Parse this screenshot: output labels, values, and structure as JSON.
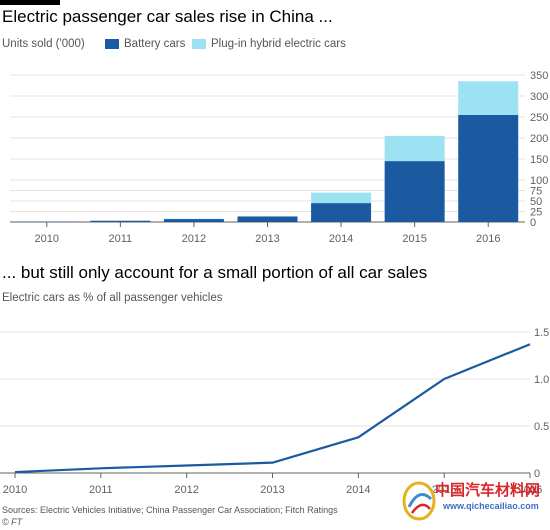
{
  "charts": {
    "top": {
      "title": "Electric passenger car sales rise in China ...",
      "subtitle": "Units sold ('000)",
      "legend": [
        {
          "label": "Battery cars",
          "color": "#1b5aa0"
        },
        {
          "label": "Plug-in hybrid electric cars",
          "color": "#9de2f2"
        }
      ]
    },
    "bottom": {
      "title": "... but still only account for a small portion of all car sales",
      "subtitle": "Electric cars as % of all passenger vehicles"
    }
  },
  "source": "Sources: Electric Vehicles Initiative; China Passenger Car Association; Fitch Ratings",
  "credit": "© FT",
  "watermark": {
    "text": "中国汽车材料网",
    "url": "www.qichecailiao.com"
  },
  "chart_data": [
    {
      "type": "bar",
      "stacked": true,
      "title": "Electric passenger car sales rise in China ...",
      "ylabel": "Units sold ('000)",
      "categories": [
        "2010",
        "2011",
        "2012",
        "2013",
        "2014",
        "2015",
        "2016"
      ],
      "series": [
        {
          "name": "Battery cars",
          "color": "#1b5aa0",
          "values": [
            1,
            3,
            7,
            13,
            45,
            145,
            255
          ]
        },
        {
          "name": "Plug-in hybrid electric cars",
          "color": "#9de2f2",
          "values": [
            0,
            0,
            1,
            1,
            25,
            60,
            80
          ]
        }
      ],
      "yticks": [
        "0",
        "25",
        "50",
        "75",
        "100",
        "150",
        "200",
        "250",
        "300",
        "350"
      ],
      "ylim": [
        0,
        350
      ],
      "axis_side": "right",
      "grid": true
    },
    {
      "type": "line",
      "title": "... but still only account for a small portion of all car sales",
      "ylabel": "Electric cars as % of all passenger vehicles",
      "x": [
        "2010",
        "2011",
        "2012",
        "2013",
        "2014",
        "2015",
        "2016"
      ],
      "series": [
        {
          "color": "#1b5aa0",
          "values": [
            0.01,
            0.05,
            0.08,
            0.11,
            0.38,
            1.0,
            1.37
          ]
        }
      ],
      "yticks": [
        "0",
        "0.5",
        "1.0",
        "1.5"
      ],
      "ylim": [
        0,
        1.5
      ],
      "axis_side": "right",
      "grid": true
    }
  ]
}
